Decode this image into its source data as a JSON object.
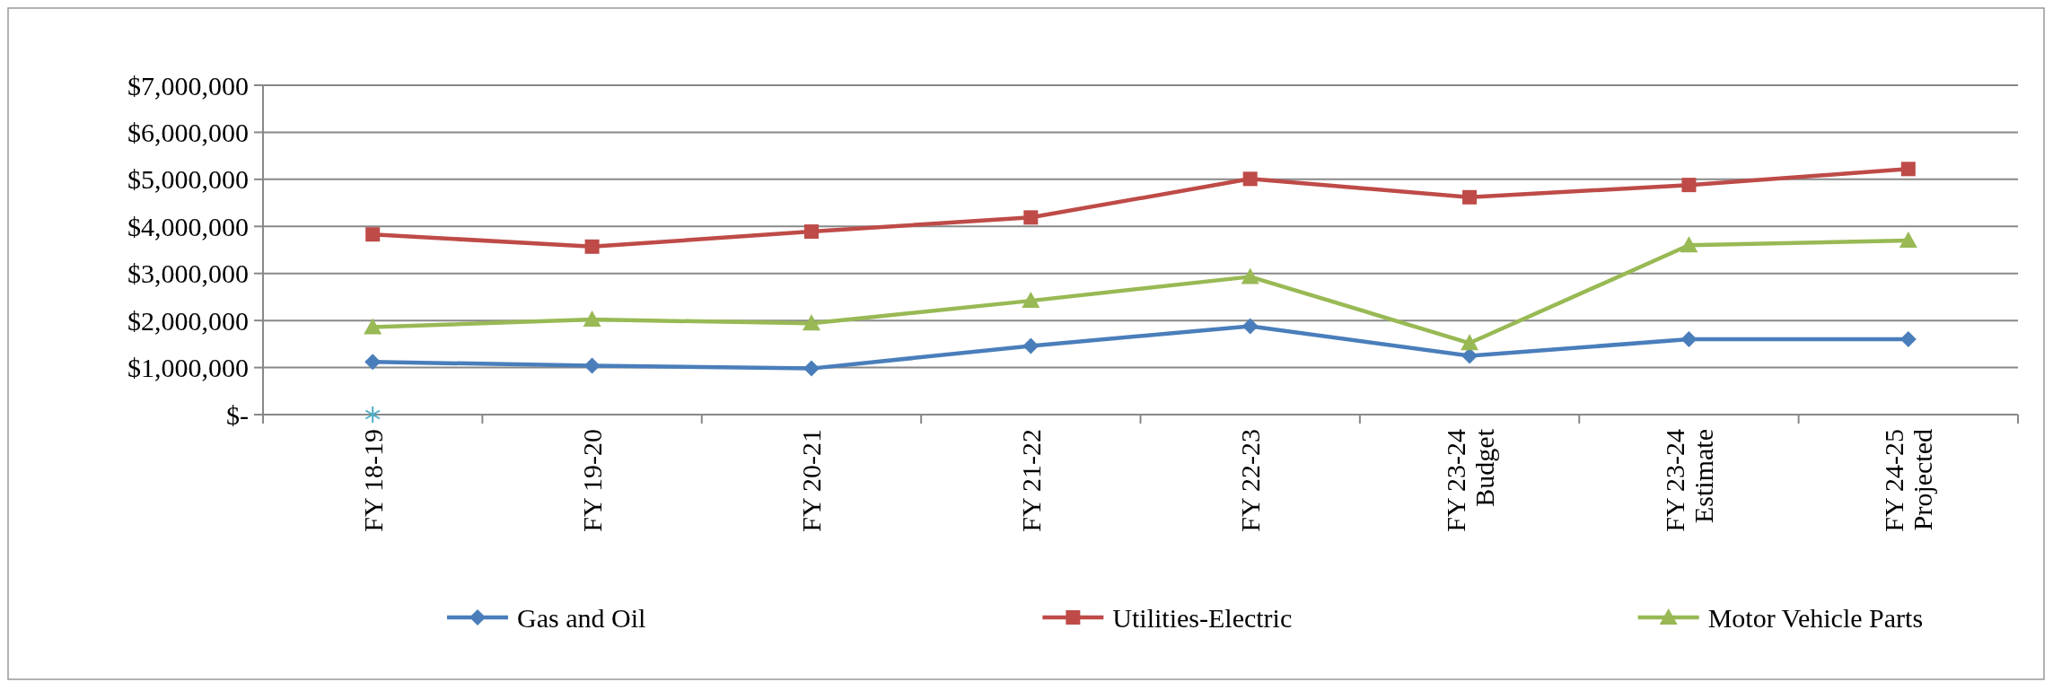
{
  "chart_data": {
    "type": "line",
    "categories": [
      "FY 18-19",
      "FY 19-20",
      "FY 20-21",
      "FY 21-22",
      "FY 22-23",
      "FY 23-24 Budget",
      "FY 23-24 Estimate",
      "FY 24-25 Projected"
    ],
    "series": [
      {
        "name": "Gas and Oil",
        "color": "#4a7ebb",
        "marker": "diamond",
        "values": [
          1120000,
          1040000,
          980000,
          1460000,
          1880000,
          1250000,
          1600000,
          1600000
        ]
      },
      {
        "name": "Utilities-Electric",
        "color": "#be4b48",
        "marker": "square",
        "values": [
          3830000,
          3570000,
          3890000,
          4190000,
          5010000,
          4620000,
          4880000,
          5220000
        ]
      },
      {
        "name": "Motor Vehicle Parts",
        "color": "#98b954",
        "marker": "triangle",
        "values": [
          1860000,
          2020000,
          1940000,
          2420000,
          2930000,
          1520000,
          3600000,
          3700000
        ]
      },
      {
        "type": "scatter",
        "color": "#4bacc6",
        "marker": "cross",
        "values": [
          0,
          null,
          null,
          null,
          null,
          null,
          null,
          null
        ]
      }
    ],
    "ylim": [
      0,
      7000000
    ],
    "yticks": [
      {
        "value": 0,
        "label": "$-"
      },
      {
        "value": 1000000,
        "label": "$1,000,000"
      },
      {
        "value": 2000000,
        "label": "$2,000,000"
      },
      {
        "value": 3000000,
        "label": "$3,000,000"
      },
      {
        "value": 4000000,
        "label": "$4,000,000"
      },
      {
        "value": 5000000,
        "label": "$5,000,000"
      },
      {
        "value": 6000000,
        "label": "$6,000,000"
      },
      {
        "value": 7000000,
        "label": "$7,000,000"
      }
    ],
    "grid": "y",
    "legend": "bottom",
    "line_style": "solid"
  }
}
